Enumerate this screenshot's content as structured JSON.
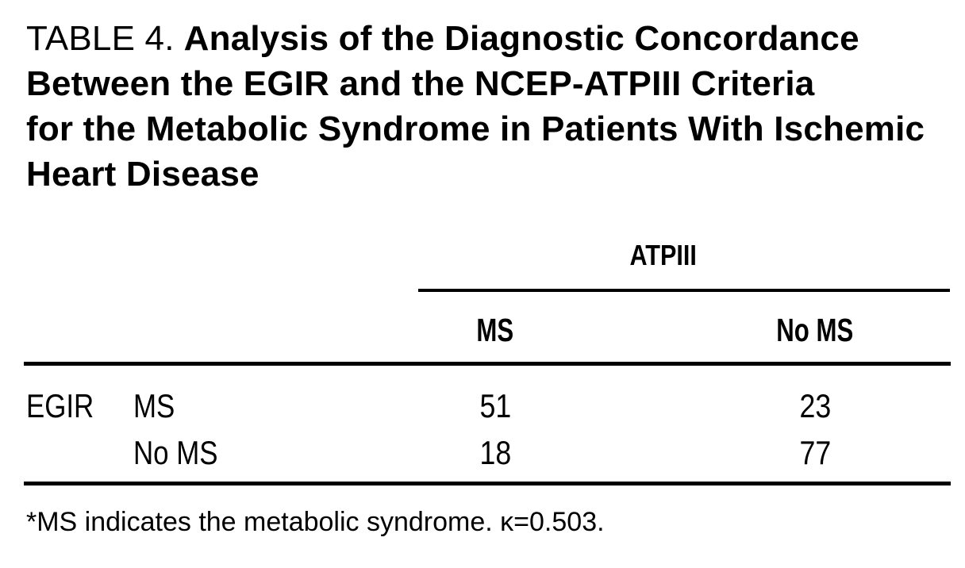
{
  "page": {
    "background": "#ffffff",
    "text_color": "#000000"
  },
  "table": {
    "caption": {
      "label": "TABLE 4.",
      "lines": [
        "Analysis of the Diagnostic Concordance",
        "Between the EGIR and the NCEP-ATPIII Criteria",
        "for the Metabolic Syndrome in Patients With Ischemic",
        "Heart Disease"
      ]
    },
    "column_group_header": "ATPIII",
    "column_headers": [
      "MS",
      "No MS"
    ],
    "row_group_header": "EGIR",
    "rows": [
      {
        "label": "MS",
        "values": [
          "51",
          "23"
        ]
      },
      {
        "label": "No MS",
        "values": [
          "18",
          "77"
        ]
      }
    ],
    "footnote": "*MS indicates the metabolic syndrome. κ=0.503."
  },
  "chart_data": {
    "type": "table",
    "title": "TABLE 4. Analysis of the Diagnostic Concordance Between the EGIR and the NCEP-ATPIII Criteria for the Metabolic Syndrome in Patients With Ischemic Heart Disease",
    "column_group": "ATPIII",
    "columns": [
      "MS",
      "No MS"
    ],
    "row_group": "EGIR",
    "rows": [
      {
        "label": "MS",
        "values": [
          51,
          23
        ]
      },
      {
        "label": "No MS",
        "values": [
          18,
          77
        ]
      }
    ],
    "kappa": 0.503,
    "footnote": "*MS indicates the metabolic syndrome. κ=0.503."
  }
}
